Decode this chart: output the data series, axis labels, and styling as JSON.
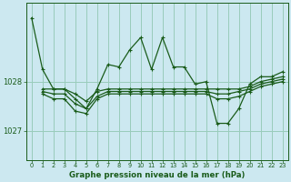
{
  "title": "Graphe pression niveau de la mer (hPa)",
  "bg_color": "#cce8f0",
  "grid_color": "#99ccbb",
  "line_color": "#1a5c1a",
  "xlim": [
    -0.5,
    23.5
  ],
  "ylim": [
    1026.4,
    1029.6
  ],
  "yticks": [
    1027,
    1028
  ],
  "xticks": [
    0,
    1,
    2,
    3,
    4,
    5,
    6,
    7,
    8,
    9,
    10,
    11,
    12,
    13,
    14,
    15,
    16,
    17,
    18,
    19,
    20,
    21,
    22,
    23
  ],
  "series1": [
    1029.3,
    1028.25,
    1027.85,
    1027.85,
    1027.65,
    1027.45,
    1027.85,
    1028.35,
    1028.3,
    1028.65,
    1028.9,
    1028.25,
    1028.9,
    1028.3,
    1028.3,
    1027.95,
    1028.0,
    1027.15,
    1027.15,
    1027.45,
    1027.95,
    1028.1,
    1028.1,
    1028.2
  ],
  "series2": [
    null,
    1027.85,
    1027.85,
    1027.85,
    1027.75,
    1027.6,
    1027.8,
    1027.85,
    1027.85,
    1027.85,
    1027.85,
    1027.85,
    1027.85,
    1027.85,
    1027.85,
    1027.85,
    1027.85,
    1027.85,
    1027.85,
    1027.85,
    1027.9,
    1028.0,
    1028.05,
    1028.1
  ],
  "series3": [
    null,
    1027.8,
    1027.75,
    1027.75,
    1027.55,
    1027.45,
    1027.7,
    1027.8,
    1027.8,
    1027.8,
    1027.8,
    1027.8,
    1027.8,
    1027.8,
    1027.8,
    1027.8,
    1027.8,
    1027.75,
    1027.75,
    1027.8,
    1027.85,
    1027.95,
    1028.0,
    1028.05
  ],
  "series4": [
    null,
    1027.75,
    1027.65,
    1027.65,
    1027.4,
    1027.35,
    1027.65,
    1027.75,
    1027.75,
    1027.75,
    1027.75,
    1027.75,
    1027.75,
    1027.75,
    1027.75,
    1027.75,
    1027.75,
    1027.65,
    1027.65,
    1027.7,
    1027.8,
    1027.9,
    1027.95,
    1028.0
  ]
}
